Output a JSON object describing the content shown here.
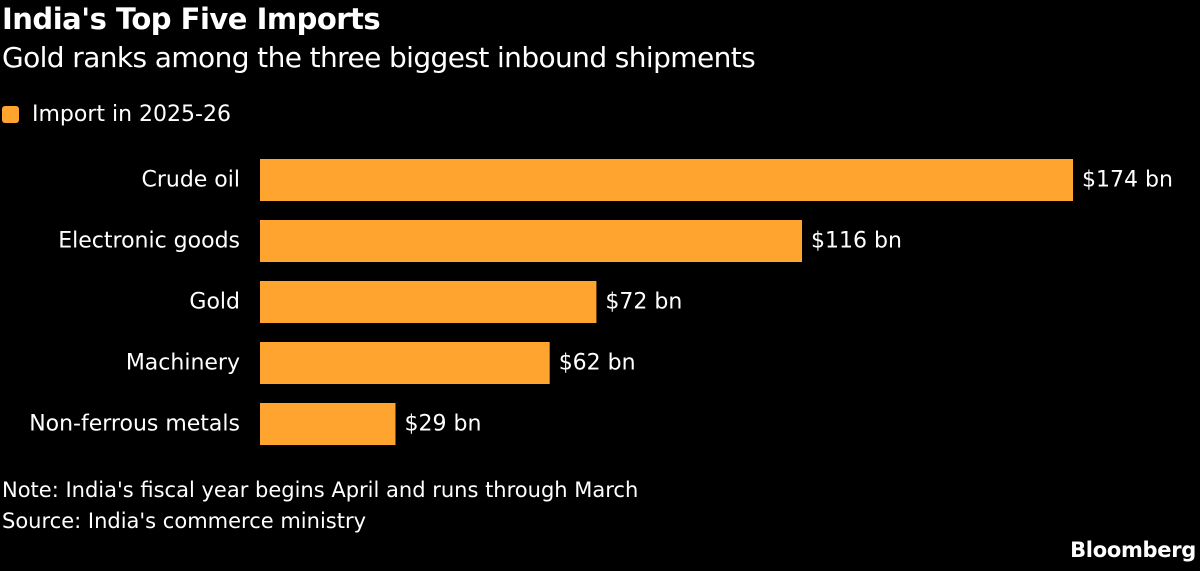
{
  "chart_data": {
    "type": "bar",
    "orientation": "horizontal",
    "title": "India's Top Five Imports",
    "subtitle": "Gold ranks among the three biggest inbound shipments",
    "legend": {
      "placement": "top-left",
      "entries": [
        "Import in 2025-26"
      ]
    },
    "categories": [
      "Crude oil",
      "Electronic goods",
      "Gold",
      "Machinery",
      "Non-ferrous metals"
    ],
    "series": [
      {
        "name": "Import in 2025-26",
        "values": [
          174,
          116,
          72,
          62,
          29
        ],
        "color": "#FFA42E"
      }
    ],
    "data_labels": [
      "$174 bn",
      "$116 bn",
      "$72 bn",
      "$62 bn",
      "$29 bn"
    ],
    "unit": "bn",
    "xlim": [
      0,
      174
    ],
    "grid": false,
    "note": "Note: India's fiscal year begins April and runs through March",
    "source": "Source: India's commerce ministry"
  },
  "branding": {
    "name": "Bloomberg"
  },
  "colors": {
    "background": "#000000",
    "text": "#FFFFFF",
    "bar": "#FFA42E"
  }
}
